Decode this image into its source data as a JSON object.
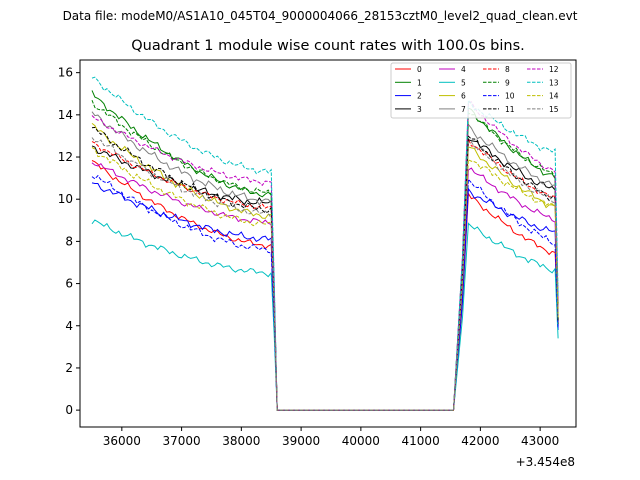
{
  "chart_data": {
    "type": "line",
    "suptitle": "Data file: modeM0/AS1A10_045T04_9000004066_28153cztM0_level2_quad_clean.evt",
    "title": "Quadrant 1 module wise count rates with 100.0s bins.",
    "xlabel": "",
    "ylabel": "",
    "x_offset_label": "+3.454e8",
    "xlim": [
      35300,
      43600
    ],
    "ylim": [
      -0.8,
      16.6
    ],
    "xticks": [
      36000,
      37000,
      38000,
      39000,
      40000,
      41000,
      42000,
      43000
    ],
    "yticks": [
      0,
      2,
      4,
      6,
      8,
      10,
      12,
      14,
      16
    ],
    "legend_position": "upper-right",
    "legend_columns": 4,
    "segments": [
      {
        "start": 35500,
        "end": 38500
      },
      {
        "start": 41800,
        "end": 43300
      }
    ],
    "gap_points_x": [
      38600,
      38650,
      41600,
      41650
    ],
    "series": [
      {
        "name": "0",
        "color": "#ff0000",
        "dash": "solid",
        "start1": 11.8,
        "end1": 7.8,
        "start2": 10.2,
        "end2": 7.4,
        "end_low": 4.2
      },
      {
        "name": "1",
        "color": "#008000",
        "dash": "solid",
        "start1": 15.0,
        "end1": 10.2,
        "start2": 14.3,
        "end2": 11.0,
        "end_low": 4.6
      },
      {
        "name": "2",
        "color": "#0000ff",
        "dash": "solid",
        "start1": 10.8,
        "end1": 8.1,
        "start2": 10.4,
        "end2": 8.4,
        "end_low": 3.8
      },
      {
        "name": "3",
        "color": "#000000",
        "dash": "solid",
        "start1": 12.5,
        "end1": 9.8,
        "start2": 13.0,
        "end2": 10.4,
        "end_low": 4.0
      },
      {
        "name": "4",
        "color": "#bf00bf",
        "dash": "solid",
        "start1": 11.8,
        "end1": 8.9,
        "start2": 11.5,
        "end2": 9.0,
        "end_low": 4.3
      },
      {
        "name": "5",
        "color": "#00bfbf",
        "dash": "solid",
        "start1": 9.0,
        "end1": 6.5,
        "start2": 8.8,
        "end2": 6.6,
        "end_low": 3.4
      },
      {
        "name": "6",
        "color": "#bfbf00",
        "dash": "solid",
        "start1": 13.5,
        "end1": 9.2,
        "start2": 12.5,
        "end2": 9.6,
        "end_low": 4.4
      },
      {
        "name": "7",
        "color": "#808080",
        "dash": "solid",
        "start1": 14.1,
        "end1": 9.9,
        "start2": 13.4,
        "end2": 10.6,
        "end_low": 4.5
      },
      {
        "name": "8",
        "color": "#ff0000",
        "dash": "dashed",
        "start1": 12.7,
        "end1": 9.6,
        "start2": 12.8,
        "end2": 10.0,
        "end_low": 4.8
      },
      {
        "name": "9",
        "color": "#008000",
        "dash": "dashed",
        "start1": 14.6,
        "end1": 10.3,
        "start2": 14.2,
        "end2": 11.1,
        "end_low": 5.0
      },
      {
        "name": "10",
        "color": "#0000ff",
        "dash": "dashed",
        "start1": 11.2,
        "end1": 7.6,
        "start2": 10.9,
        "end2": 7.9,
        "end_low": 3.9
      },
      {
        "name": "11",
        "color": "#000000",
        "dash": "dashed",
        "start1": 13.4,
        "end1": 9.5,
        "start2": 13.0,
        "end2": 10.0,
        "end_low": 4.2
      },
      {
        "name": "12",
        "color": "#bf00bf",
        "dash": "dashed",
        "start1": 13.9,
        "end1": 10.8,
        "start2": 14.6,
        "end2": 11.3,
        "end_low": 5.2
      },
      {
        "name": "13",
        "color": "#00bfbf",
        "dash": "dashed",
        "start1": 15.8,
        "end1": 11.3,
        "start2": 14.6,
        "end2": 12.2,
        "end_low": 5.4
      },
      {
        "name": "14",
        "color": "#bfbf00",
        "dash": "dashed",
        "start1": 12.4,
        "end1": 8.8,
        "start2": 12.0,
        "end2": 9.6,
        "end_low": 4.4
      },
      {
        "name": "15",
        "color": "#808080",
        "dash": "dashed",
        "start1": 13.0,
        "end1": 9.3,
        "start2": 12.8,
        "end2": 9.9,
        "end_low": 4.5
      }
    ]
  }
}
